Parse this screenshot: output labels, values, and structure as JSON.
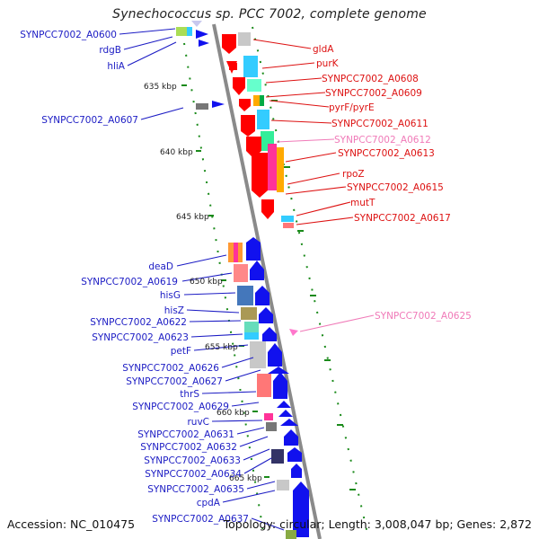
{
  "title": "Synechococcus sp. PCC 7002, complete genome",
  "footer": {
    "accession": "Accession: NC_010475",
    "topology": "Topology: circular; Length: 3,008,047 bp; Genes: 2,872"
  },
  "colors": {
    "left_label": "#1c1cc4",
    "right_label": "#dd1111",
    "pink_label": "#f07ab8",
    "backbone": "#888888",
    "tick_guide": "#1a8a1a"
  },
  "scale_labels": [
    "635 kbp",
    "640 kbp",
    "645 kbp",
    "650 kbp",
    "655 kbp",
    "660 kbp",
    "665 kbp"
  ],
  "left_genes": [
    "SYNPCC7002_A0600",
    "rdgB",
    "hliA",
    "SYNPCC7002_A0607",
    "deaD",
    "SYNPCC7002_A0619",
    "hisG",
    "hisZ",
    "SYNPCC7002_A0622",
    "SYNPCC7002_A0623",
    "petF",
    "SYNPCC7002_A0626",
    "SYNPCC7002_A0627",
    "thrS",
    "SYNPCC7002_A0629",
    "ruvC",
    "SYNPCC7002_A0631",
    "SYNPCC7002_A0632",
    "SYNPCC7002_A0633",
    "SYNPCC7002_A0634",
    "SYNPCC7002_A0635",
    "cpdA",
    "SYNPCC7002_A0637"
  ],
  "right_genes": [
    "gldA",
    "purK",
    "SYNPCC7002_A0608",
    "SYNPCC7002_A0609",
    "pyrF/pyrE",
    "SYNPCC7002_A0611",
    "SYNPCC7002_A0612",
    "SYNPCC7002_A0613",
    "rpoZ",
    "SYNPCC7002_A0615",
    "mutT",
    "SYNPCC7002_A0617",
    "SYNPCC7002_A0625"
  ]
}
